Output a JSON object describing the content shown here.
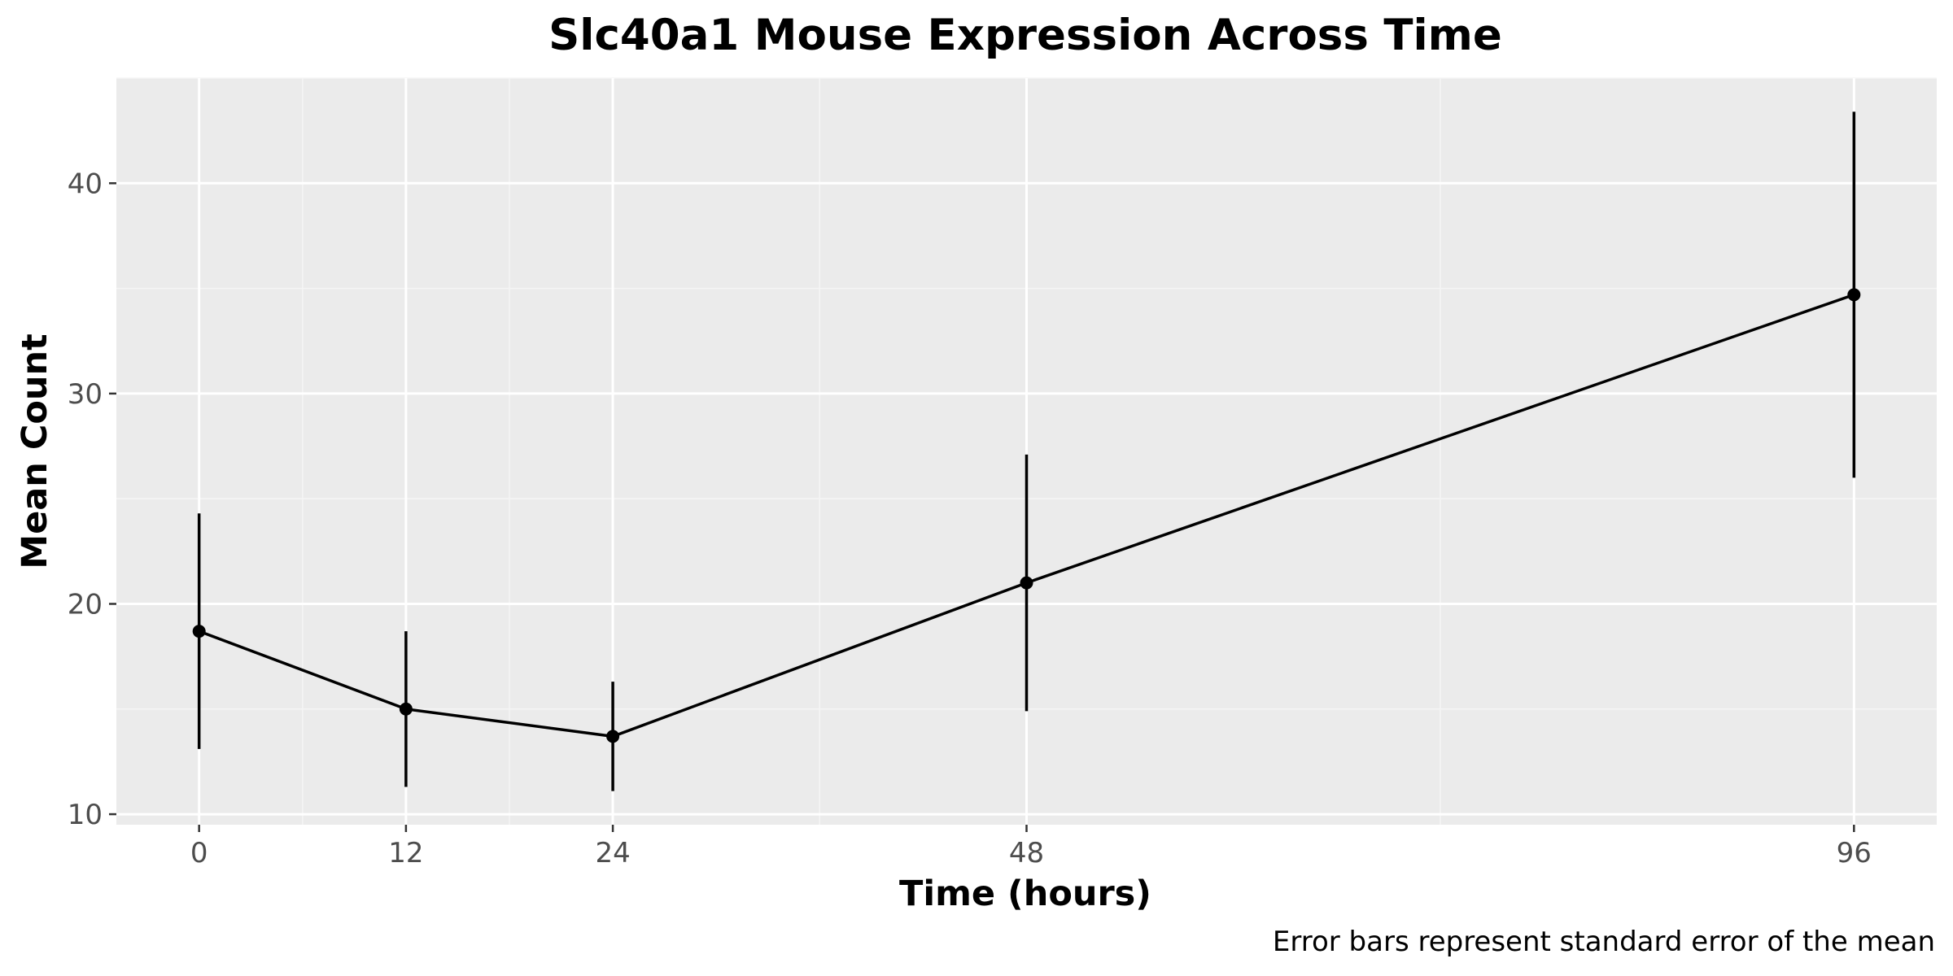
{
  "chart_data": {
    "type": "line",
    "title": "Slc40a1 Mouse Expression Across Time",
    "xlabel": "Time (hours)",
    "ylabel": "Mean Count",
    "caption": "Error bars represent standard error of the mean",
    "x": [
      0,
      12,
      24,
      48,
      96
    ],
    "series": [
      {
        "values": [
          18.7,
          15.0,
          13.7,
          21.0,
          34.7
        ],
        "error_low": [
          13.1,
          11.3,
          11.1,
          14.9,
          26.0
        ],
        "error_high": [
          24.3,
          18.7,
          16.3,
          27.1,
          43.4
        ]
      }
    ],
    "xticks": [
      0,
      12,
      24,
      48,
      96
    ],
    "yticks": [
      10,
      20,
      30,
      40
    ],
    "xlim": [
      -4.8,
      100.8
    ],
    "ylim": [
      9.5,
      45
    ],
    "grid": true,
    "legend": "none",
    "colors": {
      "panel_background": "#ebebeb",
      "grid_major": "#ffffff",
      "grid_minor": "#f5f5f5",
      "line": "#000000",
      "tick_label": "#4d4d4d"
    }
  }
}
